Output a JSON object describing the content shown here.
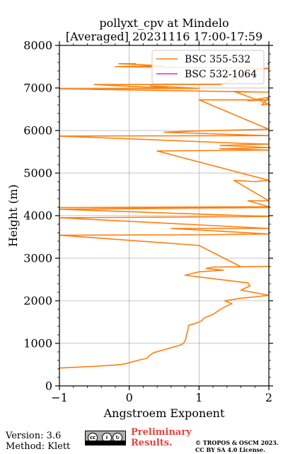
{
  "chart_data": {
    "type": "line",
    "title_line1": "pollyxt_cpv at Mindelo",
    "title_line2": "[Averaged] 20231116 17:00-17:59",
    "xlabel": "Angstroem Exponent",
    "ylabel": "Height (m)",
    "xlim": [
      -1,
      2
    ],
    "ylim": [
      0,
      8000
    ],
    "x_ticks": [
      -1,
      0,
      1,
      2
    ],
    "x_tick_labels": [
      "−1",
      "0",
      "1",
      "2"
    ],
    "y_ticks": [
      0,
      1000,
      2000,
      3000,
      4000,
      5000,
      6000,
      7000,
      8000
    ],
    "y_tick_labels": [
      "0",
      "1000",
      "2000",
      "3000",
      "4000",
      "5000",
      "6000",
      "7000",
      "8000"
    ],
    "grid": true,
    "legend_position": "top-right",
    "series": [
      {
        "name": "BSC 355-532",
        "color": "#ff7f0e",
        "points": [
          [
            -1.0,
            420
          ],
          [
            -0.5,
            460
          ],
          [
            -0.2,
            490
          ],
          [
            -0.05,
            520
          ],
          [
            0.05,
            570
          ],
          [
            0.15,
            610
          ],
          [
            0.26,
            650
          ],
          [
            0.28,
            700
          ],
          [
            0.35,
            780
          ],
          [
            0.5,
            850
          ],
          [
            0.65,
            920
          ],
          [
            0.75,
            970
          ],
          [
            0.79,
            1030
          ],
          [
            0.81,
            1100
          ],
          [
            0.82,
            1200
          ],
          [
            0.84,
            1300
          ],
          [
            0.85,
            1420
          ],
          [
            0.95,
            1470
          ],
          [
            1.03,
            1520
          ],
          [
            1.08,
            1600
          ],
          [
            1.2,
            1680
          ],
          [
            1.28,
            1770
          ],
          [
            1.36,
            1850
          ],
          [
            1.47,
            1930
          ],
          [
            1.37,
            2000
          ],
          [
            1.6,
            2060
          ],
          [
            1.85,
            2100
          ],
          [
            2.0,
            2130
          ],
          [
            1.6,
            2250
          ],
          [
            1.73,
            2350
          ],
          [
            1.7,
            2420
          ],
          [
            1.2,
            2520
          ],
          [
            0.8,
            2600
          ],
          [
            1.0,
            2680
          ],
          [
            1.35,
            2720
          ],
          [
            1.1,
            2760
          ],
          [
            1.2,
            2790
          ],
          [
            2.0,
            2810
          ],
          [
            1.6,
            2800
          ],
          [
            1.0,
            3300
          ],
          [
            -1.0,
            3540
          ],
          [
            1.0,
            3550
          ],
          [
            2.0,
            3570
          ],
          [
            0.6,
            3700
          ],
          [
            2.0,
            3700
          ],
          [
            -1.0,
            3950
          ],
          [
            2.0,
            3980
          ],
          [
            -1.0,
            4150
          ],
          [
            2.0,
            4190
          ],
          [
            -1.0,
            4190
          ],
          [
            2.0,
            4210
          ],
          [
            1.7,
            4350
          ],
          [
            2.0,
            4350
          ],
          [
            1.5,
            4830
          ],
          [
            1.8,
            4800
          ],
          [
            2.0,
            4830
          ],
          [
            0.4,
            5520
          ],
          [
            2.0,
            5540
          ],
          [
            1.3,
            5570
          ],
          [
            2.0,
            5600
          ],
          [
            1.3,
            5650
          ],
          [
            2.0,
            5680
          ],
          [
            1.6,
            5700
          ],
          [
            -1.0,
            5870
          ],
          [
            2.0,
            5880
          ],
          [
            0.5,
            5960
          ],
          [
            1.0,
            5990
          ],
          [
            2.0,
            6030
          ],
          [
            1.0,
            6720
          ],
          [
            2.0,
            6720
          ],
          [
            1.7,
            6700
          ],
          [
            2.0,
            6780
          ],
          [
            1.9,
            6600
          ],
          [
            2.0,
            6620
          ],
          [
            1.5,
            6920
          ],
          [
            2.0,
            6900
          ],
          [
            -1.0,
            6980
          ],
          [
            1.0,
            6990
          ],
          [
            0.3,
            7050
          ],
          [
            0.6,
            6990
          ],
          [
            -0.5,
            7080
          ],
          [
            1.3,
            7080
          ],
          [
            1.9,
            7440
          ],
          [
            2.0,
            7460
          ],
          [
            -0.2,
            7500
          ],
          [
            0.5,
            7520
          ],
          [
            -0.15,
            7570
          ],
          [
            0.1,
            7570
          ]
        ]
      },
      {
        "name": "BSC 532-1064",
        "color": "#e61ee6",
        "points": [
          [
            1.98,
            7560
          ],
          [
            2.0,
            7580
          ]
        ]
      }
    ]
  },
  "footer": {
    "version": "Version: 3.6",
    "method": "Method: Klett",
    "preliminary_line1": "Preliminary",
    "preliminary_line2": "Results.",
    "license_line1": "© TROPOS & OSCM 2023.",
    "license_line2": "CC BY SA 4.0 License.",
    "cc_badge_text": "BY   SA"
  }
}
